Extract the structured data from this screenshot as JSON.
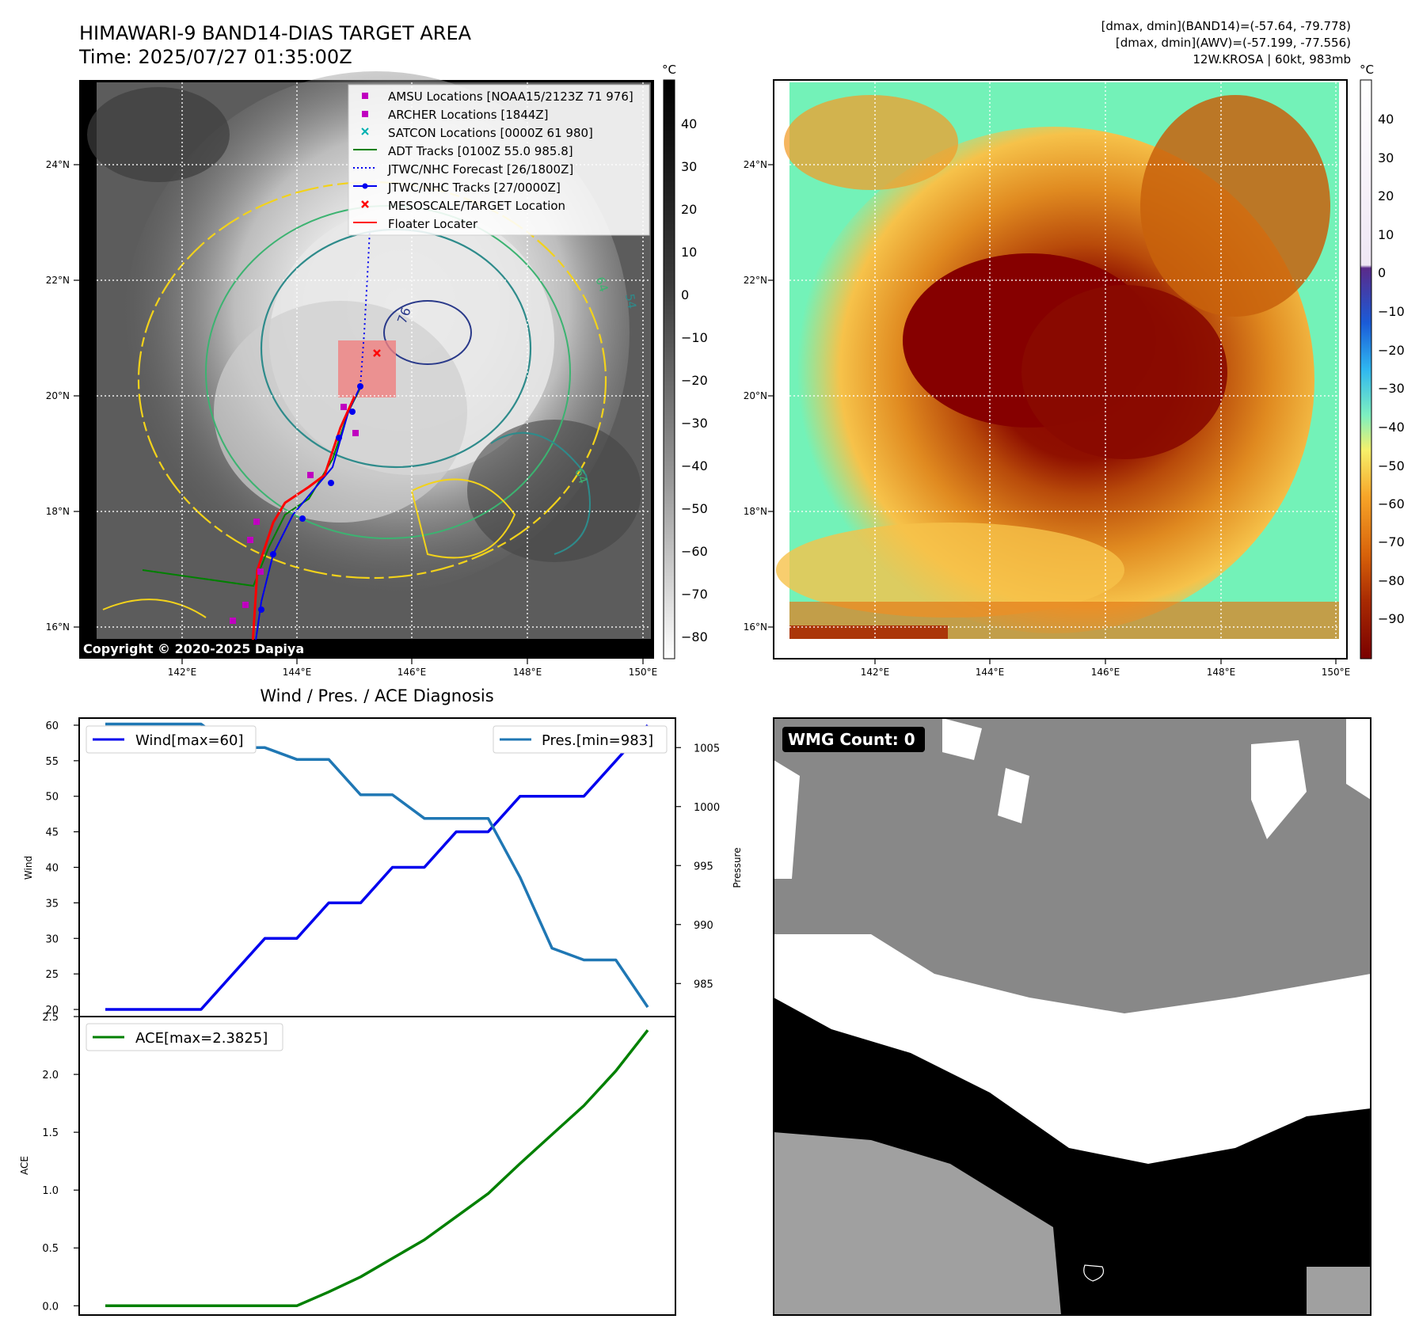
{
  "header": {
    "title": "HIMAWARI-9 BAND14-DIAS TARGET AREA",
    "time": "Time: 2025/07/27 01:35:00Z",
    "stats_line1": "[dmax, dmin](BAND14)=(-57.64, -79.778)",
    "stats_line2": "[dmax, dmin](AWV)=(-57.199, -77.556)",
    "stats_line3": "12W.KROSA | 60kt, 983mb"
  },
  "map": {
    "lat_labels": [
      "24°N",
      "22°N",
      "20°N",
      "18°N",
      "16°N"
    ],
    "lon_labels": [
      "142°E",
      "144°E",
      "146°E",
      "148°E",
      "150°E"
    ],
    "copyright": "Copyright © 2020-2025 Dapiya",
    "contour_labels": [
      "64",
      "54",
      "76",
      "64"
    ],
    "colorbar_unit": "°C",
    "colorbar_left_ticks": [
      "40",
      "30",
      "20",
      "10",
      "0",
      "−10",
      "−20",
      "−30",
      "−40",
      "−50",
      "−60",
      "−70",
      "−80"
    ],
    "colorbar_right_ticks": [
      "40",
      "30",
      "20",
      "10",
      "0",
      "−10",
      "−20",
      "−30",
      "−40",
      "−50",
      "−60",
      "−70",
      "−80",
      "−90"
    ],
    "colors": {
      "pink_square": "#c000c0",
      "cyan_x": "#00b0b0",
      "adt": "#008000",
      "jtwc": "#0000ee",
      "target": "#ff0000",
      "floater": "#ff0000",
      "target_box": "#f08080"
    }
  },
  "legend": {
    "items": [
      {
        "label": "AMSU Locations [NOAA15/2123Z 71 976]",
        "icon": "magenta-square-icon"
      },
      {
        "label": "ARCHER Locations [1844Z]",
        "icon": "magenta-square-icon"
      },
      {
        "label": "SATCON Locations [0000Z 61 980]",
        "icon": "cyan-x-icon"
      },
      {
        "label": "ADT Tracks [0100Z 55.0 985.8]",
        "icon": "green-line-icon"
      },
      {
        "label": "JTWC/NHC Forecast [26/1800Z]",
        "icon": "blue-dotted-line-icon"
      },
      {
        "label": "JTWC/NHC Tracks [27/0000Z]",
        "icon": "blue-dot-line-icon"
      },
      {
        "label": "MESOSCALE/TARGET Location",
        "icon": "red-x-icon"
      },
      {
        "label": "Floater Locater",
        "icon": "red-line-icon"
      }
    ]
  },
  "diagnosis": {
    "title": "Wind / Pres. / ACE Diagnosis",
    "wind_ylabel": "Wind",
    "pres_ylabel": "Pressure",
    "ace_ylabel": "ACE",
    "wind_legend": "Wind[max=60]",
    "pres_legend": "Pres.[min=983]",
    "ace_legend": "ACE[max=2.3825]"
  },
  "wmg": {
    "label": "WMG Count: 0"
  },
  "chart_data": [
    {
      "type": "line",
      "title": "Wind / Pres. / ACE Diagnosis",
      "xlabel": "",
      "ylabel": "Wind",
      "ylim": [
        19,
        61
      ],
      "ylim_right": [
        982.2,
        1007.5
      ],
      "y_ticks": [
        "20",
        "25",
        "30",
        "35",
        "40",
        "45",
        "50",
        "55",
        "60"
      ],
      "y2_ticks": [
        "985",
        "990",
        "995",
        "1000",
        "1005"
      ],
      "x": [
        0,
        1,
        2,
        3,
        4,
        5,
        6,
        7,
        8,
        9,
        10,
        11,
        12,
        13,
        14,
        15,
        16,
        17
      ],
      "series": [
        {
          "name": "Wind[max=60]",
          "axis": "left",
          "color": "#0000ee",
          "values": [
            20,
            20,
            20,
            20,
            25,
            30,
            30,
            35,
            35,
            40,
            40,
            45,
            45,
            50,
            50,
            50,
            55,
            60
          ]
        },
        {
          "name": "Pres.[min=983]",
          "axis": "right",
          "color": "#1f77b4",
          "values": [
            1007,
            1007,
            1007,
            1007,
            1005,
            1005,
            1004,
            1004,
            1001,
            1001,
            999,
            999,
            999,
            994,
            988,
            987,
            987,
            983
          ]
        }
      ]
    },
    {
      "type": "line",
      "xlabel": "",
      "ylabel": "ACE",
      "ylim": [
        -0.08,
        2.5
      ],
      "y_ticks": [
        "0.0",
        "0.5",
        "1.0",
        "1.5",
        "2.0",
        "2.5"
      ],
      "x": [
        0,
        1,
        2,
        3,
        4,
        5,
        6,
        7,
        8,
        9,
        10,
        11,
        12,
        13,
        14,
        15,
        16,
        17
      ],
      "series": [
        {
          "name": "ACE[max=2.3825]",
          "color": "#008000",
          "values": [
            0,
            0,
            0,
            0,
            0,
            0,
            0,
            0.12,
            0.25,
            0.41,
            0.57,
            0.77,
            0.97,
            1.23,
            1.48,
            1.73,
            2.03,
            2.3825
          ]
        }
      ]
    }
  ]
}
